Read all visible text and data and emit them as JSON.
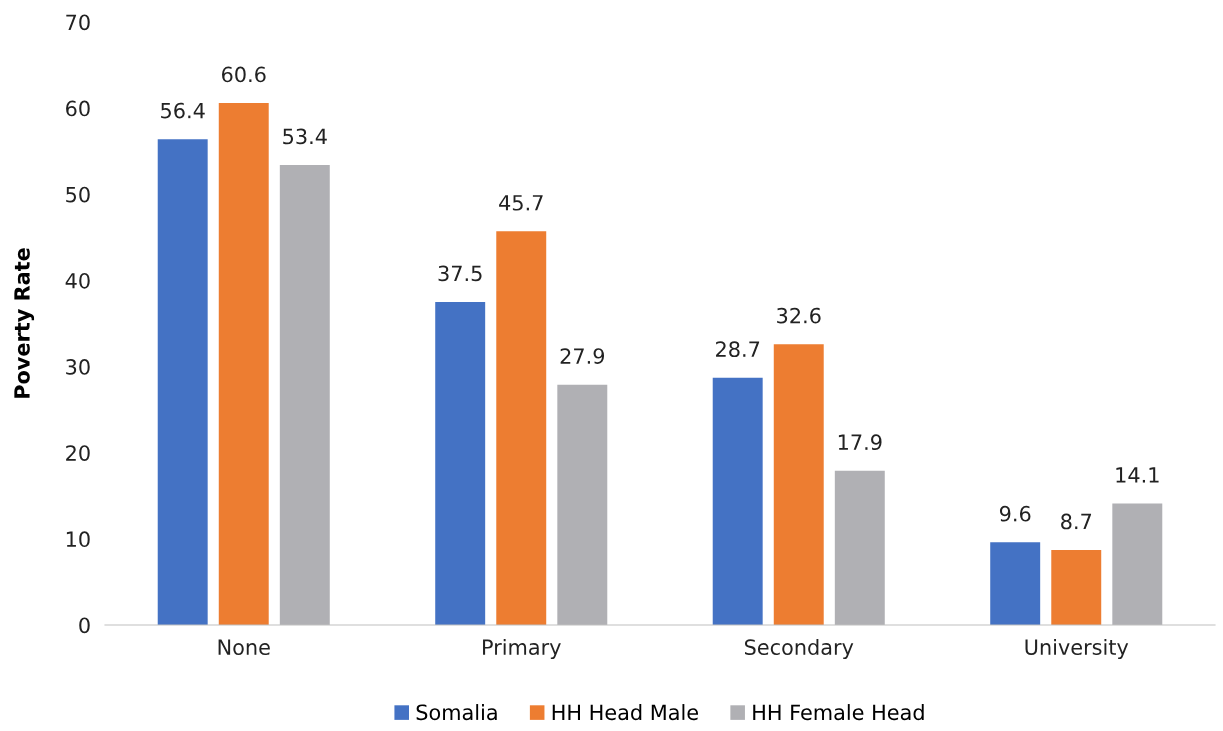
{
  "chart_data": {
    "type": "bar",
    "ylabel": "Poverty Rate",
    "categories": [
      "None",
      "Primary",
      "Secondary",
      "University"
    ],
    "series": [
      {
        "name": "Somalia",
        "color": "#4472c4",
        "values": [
          56.4,
          37.5,
          28.7,
          9.6
        ]
      },
      {
        "name": "HH Head Male",
        "color": "#ed7d31",
        "values": [
          60.6,
          45.7,
          32.6,
          8.7
        ]
      },
      {
        "name": "HH Female Head",
        "color": "#b0b0b4",
        "values": [
          53.4,
          27.9,
          17.9,
          14.1
        ]
      }
    ],
    "ylim": [
      0,
      70
    ],
    "yticks": [
      0,
      10,
      20,
      30,
      40,
      50,
      60,
      70
    ],
    "data_labels": true,
    "legend": "bottom",
    "grid": false
  }
}
